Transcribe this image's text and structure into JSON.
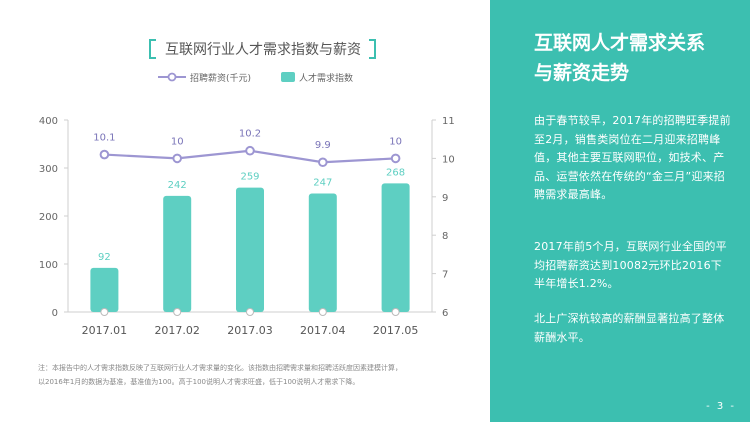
{
  "chart_data": {
    "type": "bar+line",
    "title": "互联网行业人才需求指数与薪资",
    "categories": [
      "2017.01",
      "2017.02",
      "2017.03",
      "2017.04",
      "2017.05"
    ],
    "series": [
      {
        "name": "招聘薪资(千元)",
        "kind": "line",
        "axis": "right",
        "values": [
          10.1,
          10,
          10.2,
          9.9,
          10
        ],
        "labels": [
          "10.1",
          "10",
          "10.2",
          "9.9",
          "10"
        ]
      },
      {
        "name": "人才需求指数",
        "kind": "bar",
        "axis": "left",
        "values": [
          92,
          242,
          259,
          247,
          268
        ],
        "labels": [
          "92",
          "242",
          "259",
          "247",
          "268"
        ]
      }
    ],
    "left_axis": {
      "ylim": [
        0,
        400
      ],
      "ticks": [
        "0",
        "100",
        "200",
        "300",
        "400"
      ]
    },
    "right_axis": {
      "ylim": [
        6,
        11
      ],
      "ticks": [
        "6",
        "7",
        "8",
        "9",
        "10",
        "11"
      ]
    },
    "legend_position": "top",
    "grid": false
  },
  "colors": {
    "bar": "#5ecfc2",
    "line": "#9d96d2",
    "accent": "#3cbfb0",
    "axis": "#cfcfcf"
  },
  "note": {
    "line1": "注：本报告中的人才需求指数反映了互联网行业人才需求量的变化。该指数由招聘需求量和招聘活跃度因素建模计算，",
    "line2": "以2016年1月的数据为基准，基准值为100。高于100说明人才需求旺盛，低于100说明人才需求下降。"
  },
  "sidebar": {
    "title_line1": "互联网人才需求关系",
    "title_line2": "与薪资走势",
    "p1": "由于春节较早，2017年的招聘旺季提前至2月，销售类岗位在二月迎来招聘峰值，其他主要互联网职位，如技术、产品、运营依然在传统的“金三月”迎来招聘需求最高峰。",
    "p2": "2017年前5个月，互联网行业全国的平均招聘薪资达到10082元环比2016下半年增长1.2%。",
    "p3": "北上广深杭较高的薪酬显著拉高了整体薪酬水平。"
  },
  "page": "- 3 -"
}
